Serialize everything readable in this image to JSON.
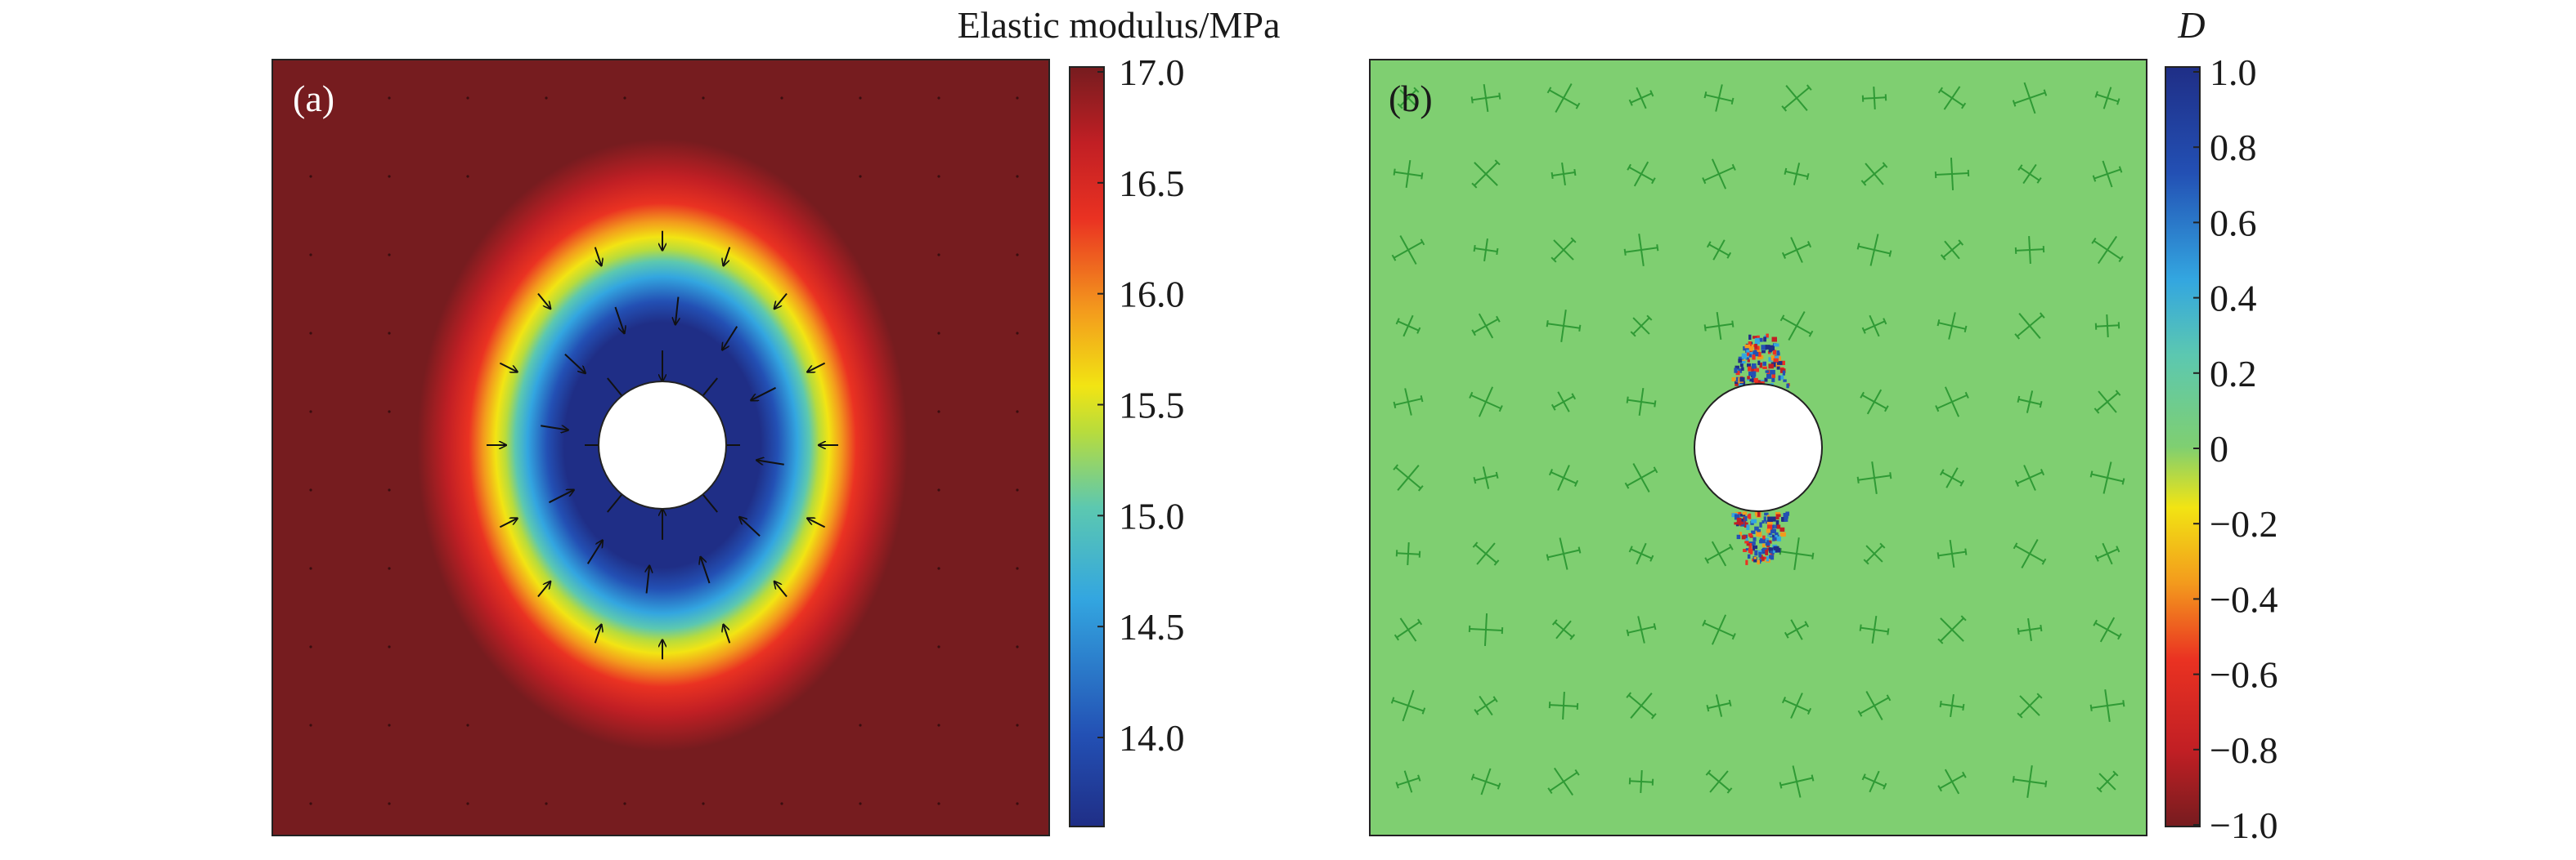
{
  "panel_a": {
    "label": "(a)",
    "colorbar_title": "Elastic modulus/MPa",
    "colorbar_ticks": [
      "17.0",
      "16.5",
      "16.0",
      "15.5",
      "15.0",
      "14.5",
      "14.0"
    ],
    "colorbar_range": [
      13.6,
      17.0
    ],
    "colormap": [
      "#1f2e86",
      "#2350b4",
      "#33a6e0",
      "#5cc8b0",
      "#b8dc3c",
      "#f2e413",
      "#f39a1d",
      "#ea3222",
      "#c11f24",
      "#761c1f"
    ]
  },
  "panel_b": {
    "label": "(b)",
    "colorbar_title": "D",
    "colorbar_ticks": [
      "1.0",
      "0.8",
      "0.6",
      "0.4",
      "0.2",
      "0",
      "−0.2",
      "−0.4",
      "−0.6",
      "−0.8",
      "−1.0"
    ],
    "colorbar_range": [
      -1.0,
      1.0
    ],
    "field_color": "#7fcf71",
    "glyph_color": "#2f9a35",
    "colormap": [
      "#761c1f",
      "#c11f24",
      "#ea3222",
      "#f39a1d",
      "#f2e413",
      "#b8dc3c",
      "#7fcf71",
      "#5cc8b0",
      "#33a6e0",
      "#2350b4",
      "#1f2e86"
    ]
  }
}
